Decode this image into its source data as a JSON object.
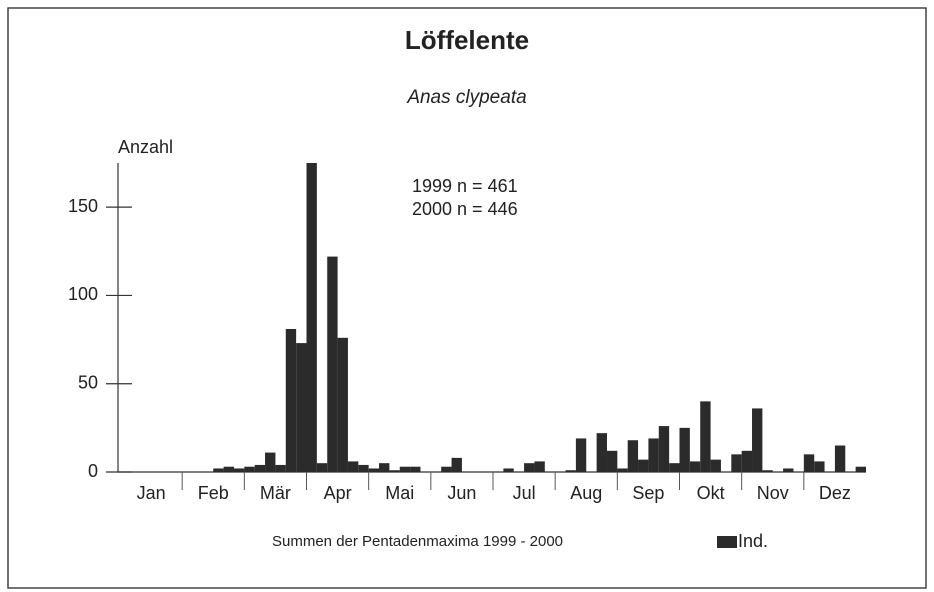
{
  "chart_data": {
    "type": "bar",
    "title": "Löffelente",
    "subtitle": "Anas clypeata",
    "y_label": "Anzahl",
    "annotations": [
      "1999 n = 461",
      "2000 n = 446"
    ],
    "x_label": "Summen der Pentadenmaxima 1999 - 2000",
    "months": [
      "Jan",
      "Feb",
      "Mär",
      "Apr",
      "Mai",
      "Jun",
      "Jul",
      "Aug",
      "Sep",
      "Okt",
      "Nov",
      "Dez"
    ],
    "series": [
      {
        "name": "Ind.",
        "color": "#2b2b2b",
        "values": [
          0,
          0,
          0,
          0,
          0,
          0,
          0,
          0,
          0,
          2,
          3,
          2,
          3,
          4,
          11,
          4,
          81,
          73,
          175,
          5,
          122,
          76,
          6,
          4,
          2,
          5,
          1,
          3,
          3,
          0,
          0,
          3,
          8,
          0,
          0,
          0,
          0,
          2,
          0,
          5,
          6,
          0,
          0,
          1,
          19,
          0,
          22,
          12,
          2,
          18,
          7,
          19,
          26,
          5,
          25,
          6,
          40,
          7,
          0,
          10,
          12,
          36,
          1,
          0,
          2,
          0,
          10,
          6,
          0,
          15,
          0,
          3
        ]
      }
    ],
    "ylim": [
      0,
      175
    ],
    "yticks": [
      0,
      50,
      100,
      150
    ]
  }
}
